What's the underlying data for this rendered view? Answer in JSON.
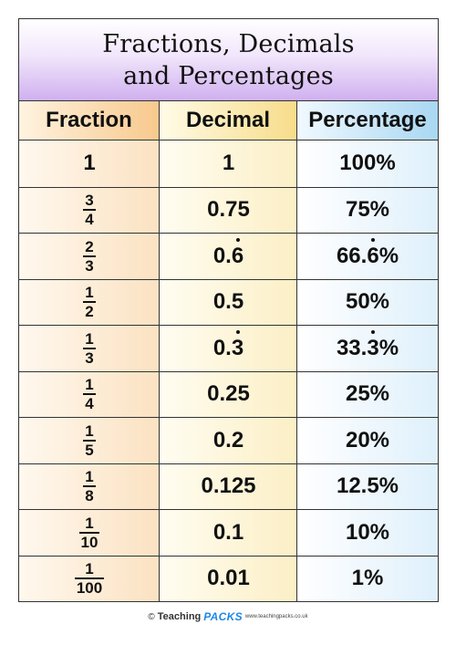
{
  "title": {
    "line1": "Fractions, Decimals",
    "line2": "and Percentages"
  },
  "headers": {
    "fraction": "Fraction",
    "decimal": "Decimal",
    "percentage": "Percentage"
  },
  "rows": [
    {
      "fraction_whole": "1",
      "decimal": "1",
      "percentage": "100%"
    },
    {
      "numerator": "3",
      "denominator": "4",
      "decimal": "0.75",
      "percentage": "75%"
    },
    {
      "numerator": "2",
      "denominator": "3",
      "decimal_prefix": "0.",
      "decimal_recurring": "6",
      "percentage_prefix": "66.",
      "percentage_recurring": "6",
      "percentage_suffix": "%"
    },
    {
      "numerator": "1",
      "denominator": "2",
      "decimal": "0.5",
      "percentage": "50%"
    },
    {
      "numerator": "1",
      "denominator": "3",
      "decimal_prefix": "0.",
      "decimal_recurring": "3",
      "percentage_prefix": "33.",
      "percentage_recurring": "3",
      "percentage_suffix": "%"
    },
    {
      "numerator": "1",
      "denominator": "4",
      "decimal": "0.25",
      "percentage": "25%"
    },
    {
      "numerator": "1",
      "denominator": "5",
      "decimal": "0.2",
      "percentage": "20%"
    },
    {
      "numerator": "1",
      "denominator": "8",
      "decimal": "0.125",
      "percentage": "12.5%"
    },
    {
      "numerator": "1",
      "denominator": "10",
      "decimal": "0.1",
      "percentage": "10%"
    },
    {
      "numerator": "1",
      "denominator": "100",
      "decimal": "0.01",
      "percentage": "1%"
    }
  ],
  "footer": {
    "copyright": "©",
    "brand_word1": "Teaching",
    "brand_word2": "PACKS",
    "url": "www.teachingpacks.co.uk"
  }
}
